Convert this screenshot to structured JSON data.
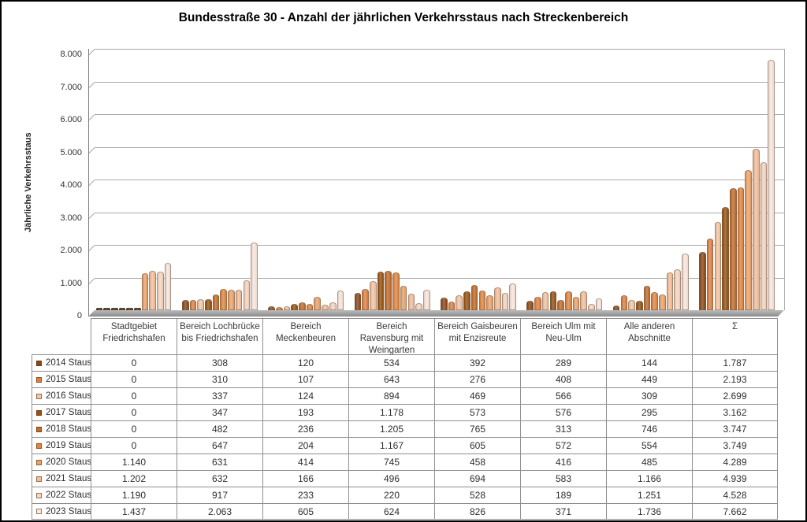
{
  "title": "Bundesstraße 30 - Anzahl der jährlichen Verkehrsstaus nach Streckenbereich",
  "y_axis": {
    "label": "Jährliche Verkehrsstaus",
    "ticks": [
      "8.000",
      "7.000",
      "6.000",
      "5.000",
      "4.000",
      "3.000",
      "2.000",
      "1.000",
      "0"
    ]
  },
  "chart_data": {
    "type": "bar",
    "style": "3d-cylinder-columns",
    "title": "Bundesstraße 30 - Anzahl der jährlichen Verkehrsstaus nach Streckenbereich",
    "xlabel": "",
    "ylabel": "Jährliche Verkehrsstaus",
    "ylim": [
      0,
      8000
    ],
    "y_tick_step": 1000,
    "grid": true,
    "legend_position": "table-left",
    "categories": [
      "Stadtgebiet Friedrichshafen",
      "Bereich Lochbrücke bis Friedrichshafen",
      "Bereich Meckenbeuren",
      "Bereich Ravensburg mit Weingarten",
      "Bereich Gaisbeuren mit Enzisreute",
      "Bereich Ulm mit Neu-Ulm",
      "Alle anderen Abschnitte",
      "Σ"
    ],
    "series": [
      {
        "name": "2014 Staus",
        "color": "#8B4817",
        "values": [
          0,
          308,
          120,
          534,
          392,
          289,
          144,
          1787
        ]
      },
      {
        "name": "2015 Staus",
        "color": "#DF8040",
        "values": [
          0,
          310,
          107,
          643,
          276,
          408,
          449,
          2193
        ]
      },
      {
        "name": "2016 Staus",
        "color": "#F4C5A2",
        "values": [
          0,
          337,
          124,
          894,
          469,
          566,
          309,
          2699
        ]
      },
      {
        "name": "2017 Staus",
        "color": "#96520F",
        "values": [
          0,
          347,
          193,
          1178,
          573,
          576,
          295,
          3162
        ]
      },
      {
        "name": "2018 Staus",
        "color": "#C06C2B",
        "values": [
          0,
          482,
          236,
          1205,
          765,
          313,
          746,
          3747
        ]
      },
      {
        "name": "2019 Staus",
        "color": "#E0863F",
        "values": [
          0,
          647,
          204,
          1167,
          605,
          572,
          554,
          3749
        ]
      },
      {
        "name": "2020 Staus",
        "color": "#ECA269",
        "values": [
          1140,
          631,
          414,
          745,
          458,
          416,
          485,
          4289
        ]
      },
      {
        "name": "2021 Staus",
        "color": "#F4BE9A",
        "values": [
          1202,
          632,
          166,
          496,
          694,
          583,
          1166,
          4939
        ]
      },
      {
        "name": "2022 Staus",
        "color": "#F7D5C0",
        "values": [
          1190,
          917,
          233,
          220,
          528,
          189,
          1251,
          4528
        ]
      },
      {
        "name": "2023 Staus",
        "color": "#FAE6DB",
        "values": [
          1437,
          2063,
          605,
          624,
          826,
          371,
          1736,
          7662
        ]
      }
    ]
  },
  "table": {
    "column_headers": [
      "Stadtgebiet Friedrichshafen",
      "Bereich Lochbrücke bis Friedrichshafen",
      "Bereich Meckenbeuren",
      "Bereich Ravensburg mit Weingarten",
      "Bereich Gaisbeuren mit Enzisreute",
      "Bereich Ulm mit Neu-Ulm",
      "Alle anderen Abschnitte",
      "Σ"
    ],
    "rows": [
      {
        "label": "2014 Staus",
        "color": "#8B4817",
        "cells": [
          "0",
          "308",
          "120",
          "534",
          "392",
          "289",
          "144",
          "1.787"
        ]
      },
      {
        "label": "2015 Staus",
        "color": "#DF8040",
        "cells": [
          "0",
          "310",
          "107",
          "643",
          "276",
          "408",
          "449",
          "2.193"
        ]
      },
      {
        "label": "2016 Staus",
        "color": "#F4C5A2",
        "cells": [
          "0",
          "337",
          "124",
          "894",
          "469",
          "566",
          "309",
          "2.699"
        ]
      },
      {
        "label": "2017 Staus",
        "color": "#96520F",
        "cells": [
          "0",
          "347",
          "193",
          "1.178",
          "573",
          "576",
          "295",
          "3.162"
        ]
      },
      {
        "label": "2018 Staus",
        "color": "#C06C2B",
        "cells": [
          "0",
          "482",
          "236",
          "1.205",
          "765",
          "313",
          "746",
          "3.747"
        ]
      },
      {
        "label": "2019 Staus",
        "color": "#E0863F",
        "cells": [
          "0",
          "647",
          "204",
          "1.167",
          "605",
          "572",
          "554",
          "3.749"
        ]
      },
      {
        "label": "2020 Staus",
        "color": "#ECA269",
        "cells": [
          "1.140",
          "631",
          "414",
          "745",
          "458",
          "416",
          "485",
          "4.289"
        ]
      },
      {
        "label": "2021 Staus",
        "color": "#F4BE9A",
        "cells": [
          "1.202",
          "632",
          "166",
          "496",
          "694",
          "583",
          "1.166",
          "4.939"
        ]
      },
      {
        "label": "2022 Staus",
        "color": "#F7D5C0",
        "cells": [
          "1.190",
          "917",
          "233",
          "220",
          "528",
          "189",
          "1.251",
          "4.528"
        ]
      },
      {
        "label": "2023 Staus",
        "color": "#FAE6DB",
        "cells": [
          "1.437",
          "2.063",
          "605",
          "624",
          "826",
          "371",
          "1.736",
          "7.662"
        ]
      }
    ]
  }
}
